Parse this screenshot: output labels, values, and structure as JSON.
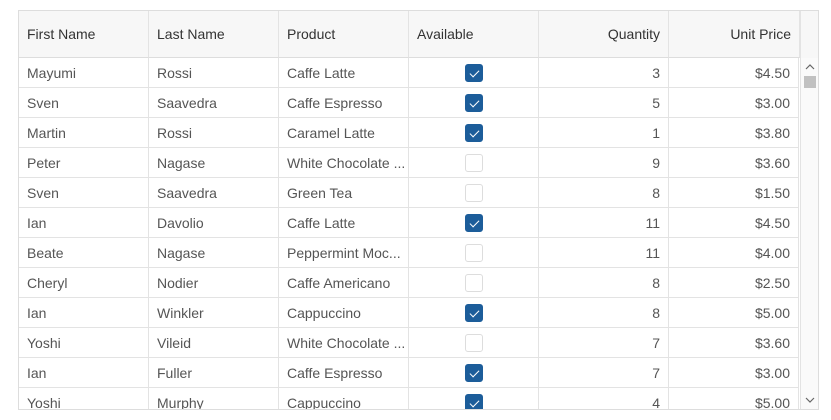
{
  "table": {
    "columns": [
      "First Name",
      "Last Name",
      "Product",
      "Available",
      "Quantity",
      "Unit Price"
    ],
    "rows": [
      [
        "Mayumi",
        "Rossi",
        "Caffe Latte",
        true,
        3,
        "$4.50"
      ],
      [
        "Sven",
        "Saavedra",
        "Caffe Espresso",
        true,
        5,
        "$3.00"
      ],
      [
        "Martin",
        "Rossi",
        "Caramel Latte",
        true,
        1,
        "$3.80"
      ],
      [
        "Peter",
        "Nagase",
        "White Chocolate ...",
        false,
        9,
        "$3.60"
      ],
      [
        "Sven",
        "Saavedra",
        "Green Tea",
        false,
        8,
        "$1.50"
      ],
      [
        "Ian",
        "Davolio",
        "Caffe Latte",
        true,
        11,
        "$4.50"
      ],
      [
        "Beate",
        "Nagase",
        "Peppermint Moc...",
        false,
        11,
        "$4.00"
      ],
      [
        "Cheryl",
        "Nodier",
        "Caffe Americano",
        false,
        8,
        "$2.50"
      ],
      [
        "Ian",
        "Winkler",
        "Cappuccino",
        true,
        8,
        "$5.00"
      ],
      [
        "Yoshi",
        "Vileid",
        "White Chocolate ...",
        false,
        7,
        "$3.60"
      ],
      [
        "Ian",
        "Fuller",
        "Caffe Espresso",
        true,
        7,
        "$3.00"
      ],
      [
        "Yoshi",
        "Murphy",
        "Cappuccino",
        true,
        4,
        "$5.00"
      ]
    ]
  }
}
